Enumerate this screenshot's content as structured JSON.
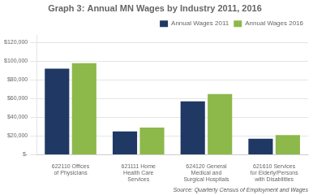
{
  "chart_data": {
    "type": "bar",
    "title": "Graph 3: Annual MN Wages by Industry 2011, 2016",
    "categories": [
      "622110 Offices\nof Physicians",
      "621111 Home\nHealth Care\nServices",
      "624120 General\nMedical and\nSurgical Hospitals",
      "621610 Services\nfor Elderly/Persons\nwith Disabilities"
    ],
    "series": [
      {
        "name": "Annual Wages 2011",
        "color": "#1F3864",
        "values": [
          92000,
          25000,
          57000,
          17000
        ]
      },
      {
        "name": "Annual Wages 2016",
        "color": "#8DB84A",
        "values": [
          98000,
          29000,
          65000,
          21000
        ]
      }
    ],
    "ylim": [
      0,
      128000
    ],
    "yticks": [
      {
        "value": 0,
        "label": "$-"
      },
      {
        "value": 20000,
        "label": "$20,000"
      },
      {
        "value": 40000,
        "label": "$40,000"
      },
      {
        "value": 60000,
        "label": "$60,000"
      },
      {
        "value": 80000,
        "label": "$80,000"
      },
      {
        "value": 100000,
        "label": "$100,000"
      },
      {
        "value": 120000,
        "label": "$120,000"
      }
    ],
    "grid": true,
    "legend": "upper right",
    "annotations": [
      "Source: Quarterly Census of Employment and Wages"
    ]
  }
}
